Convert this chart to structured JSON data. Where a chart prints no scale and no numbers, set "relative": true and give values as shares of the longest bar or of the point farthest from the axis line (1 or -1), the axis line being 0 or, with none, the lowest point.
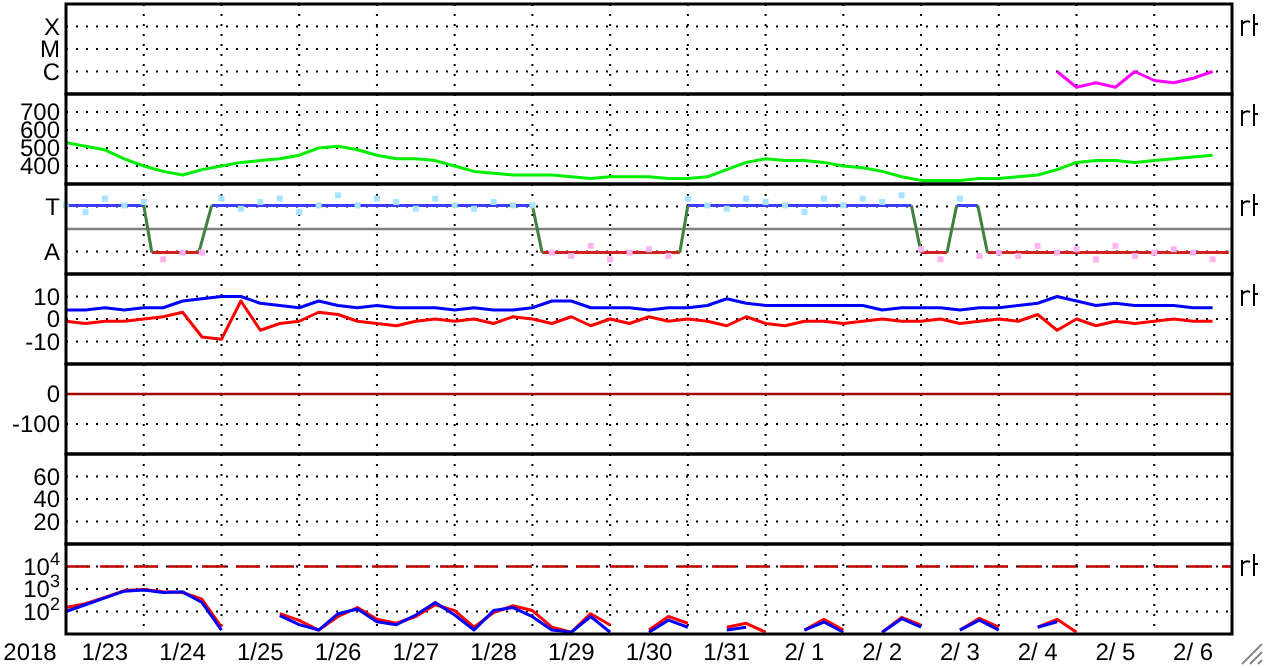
{
  "chart_data": [
    {
      "type": "line",
      "relative": true,
      "grid": true,
      "tick_labels": "y",
      "xlim": [
        "2018-01-23",
        "2018-02-07"
      ],
      "annotations": [
        "X",
        "M",
        "C"
      ],
      "xticks": [
        {
          "value": "2018-01-24",
          "label": null
        },
        {
          "value": "2018-01-25",
          "label": null
        },
        {
          "value": "2018-01-26",
          "label": null
        },
        {
          "value": "2018-01-27",
          "label": null
        },
        {
          "value": "2018-01-28",
          "label": null
        },
        {
          "value": "2018-01-29",
          "label": null
        },
        {
          "value": "2018-01-30",
          "label": null
        },
        {
          "value": "2018-01-31",
          "label": null
        },
        {
          "value": "2018-02-01",
          "label": null
        },
        {
          "value": "2018-02-02",
          "label": null
        },
        {
          "value": "2018-02-03",
          "label": null
        },
        {
          "value": "2018-02-04",
          "label": null
        },
        {
          "value": "2018-02-05",
          "label": null
        },
        {
          "value": "2018-02-06",
          "label": null
        }
      ],
      "x": [
        "2018-02-04T18:00",
        "2018-02-05T00:00",
        "2018-02-05T06:00",
        "2018-02-05T12:00",
        "2018-02-05T18:00",
        "2018-02-06T00:00",
        "2018-02-06T06:00",
        "2018-02-06T12:00",
        "2018-02-06T18:00"
      ],
      "series": [
        {
          "color": "#ff00ff",
          "values": [
            1,
            0.3,
            0.5,
            0.3,
            1,
            0.6,
            0.5,
            0.7,
            1
          ]
        }
      ]
    },
    {
      "type": "line",
      "grid": true,
      "tick_labels": "y",
      "xlim": [
        "2018-01-23",
        "2018-02-07"
      ],
      "ylim": [
        300,
        800
      ],
      "yticks": [
        400,
        500,
        600,
        700
      ],
      "xticks": [
        {
          "value": "2018-01-24",
          "label": null
        },
        {
          "value": "2018-01-25",
          "label": null
        },
        {
          "value": "2018-01-26",
          "label": null
        },
        {
          "value": "2018-01-27",
          "label": null
        },
        {
          "value": "2018-01-28",
          "label": null
        },
        {
          "value": "2018-01-29",
          "label": null
        },
        {
          "value": "2018-01-30",
          "label": null
        },
        {
          "value": "2018-01-31",
          "label": null
        },
        {
          "value": "2018-02-01",
          "label": null
        },
        {
          "value": "2018-02-02",
          "label": null
        },
        {
          "value": "2018-02-03",
          "label": null
        },
        {
          "value": "2018-02-04",
          "label": null
        },
        {
          "value": "2018-02-05",
          "label": null
        },
        {
          "value": "2018-02-06",
          "label": null
        }
      ],
      "x": [
        "2018-01-23T00:00",
        "2018-01-23T06:00",
        "2018-01-23T12:00",
        "2018-01-23T18:00",
        "2018-01-24T00:00",
        "2018-01-24T06:00",
        "2018-01-24T12:00",
        "2018-01-24T18:00",
        "2018-01-25T00:00",
        "2018-01-25T06:00",
        "2018-01-25T12:00",
        "2018-01-25T18:00",
        "2018-01-26T00:00",
        "2018-01-26T06:00",
        "2018-01-26T12:00",
        "2018-01-26T18:00",
        "2018-01-27T00:00",
        "2018-01-27T06:00",
        "2018-01-27T12:00",
        "2018-01-27T18:00",
        "2018-01-28T00:00",
        "2018-01-28T06:00",
        "2018-01-28T12:00",
        "2018-01-28T18:00",
        "2018-01-29T00:00",
        "2018-01-29T06:00",
        "2018-01-29T12:00",
        "2018-01-29T18:00",
        "2018-01-30T00:00",
        "2018-01-30T06:00",
        "2018-01-30T12:00",
        "2018-01-30T18:00",
        "2018-01-31T00:00",
        "2018-01-31T06:00",
        "2018-01-31T12:00",
        "2018-01-31T18:00",
        "2018-02-01T00:00",
        "2018-02-01T06:00",
        "2018-02-01T12:00",
        "2018-02-01T18:00",
        "2018-02-02T00:00",
        "2018-02-02T06:00",
        "2018-02-02T12:00",
        "2018-02-02T18:00",
        "2018-02-03T00:00",
        "2018-02-03T06:00",
        "2018-02-03T12:00",
        "2018-02-03T18:00",
        "2018-02-04T00:00",
        "2018-02-04T06:00",
        "2018-02-04T12:00",
        "2018-02-04T18:00",
        "2018-02-05T00:00",
        "2018-02-05T06:00",
        "2018-02-05T12:00",
        "2018-02-05T18:00",
        "2018-02-06T00:00",
        "2018-02-06T06:00",
        "2018-02-06T12:00",
        "2018-02-06T18:00"
      ],
      "series": [
        {
          "color": "#00ee00",
          "values": [
            530,
            510,
            490,
            440,
            400,
            370,
            350,
            380,
            400,
            420,
            430,
            440,
            460,
            500,
            510,
            490,
            460,
            440,
            440,
            430,
            400,
            370,
            360,
            350,
            350,
            350,
            340,
            330,
            340,
            340,
            340,
            330,
            330,
            340,
            380,
            420,
            440,
            430,
            430,
            420,
            400,
            390,
            370,
            340,
            320,
            320,
            320,
            330,
            330,
            340,
            350,
            380,
            420,
            430,
            430,
            420,
            430,
            440,
            450,
            460
          ]
        }
      ]
    },
    {
      "type": "line",
      "relative": true,
      "grid": true,
      "tick_labels": "y",
      "xlim": [
        "2018-01-23",
        "2018-02-07"
      ],
      "annotations": [
        "T",
        "A"
      ],
      "xticks": [
        {
          "value": "2018-01-24",
          "label": null
        },
        {
          "value": "2018-01-25",
          "label": null
        },
        {
          "value": "2018-01-26",
          "label": null
        },
        {
          "value": "2018-01-27",
          "label": null
        },
        {
          "value": "2018-01-28",
          "label": null
        },
        {
          "value": "2018-01-29",
          "label": null
        },
        {
          "value": "2018-01-30",
          "label": null
        },
        {
          "value": "2018-01-31",
          "label": null
        },
        {
          "value": "2018-02-01",
          "label": null
        },
        {
          "value": "2018-02-02",
          "label": null
        },
        {
          "value": "2018-02-03",
          "label": null
        },
        {
          "value": "2018-02-04",
          "label": null
        },
        {
          "value": "2018-02-05",
          "label": null
        },
        {
          "value": "2018-02-06",
          "label": null
        }
      ],
      "x": [
        "2018-01-23T00:00",
        "2018-01-23T06:00",
        "2018-01-23T12:00",
        "2018-01-23T18:00",
        "2018-01-24T00:00",
        "2018-01-24T06:00",
        "2018-01-24T12:00",
        "2018-01-24T18:00",
        "2018-01-25T00:00",
        "2018-01-25T06:00",
        "2018-01-25T12:00",
        "2018-01-25T18:00",
        "2018-01-26T00:00",
        "2018-01-26T06:00",
        "2018-01-26T12:00",
        "2018-01-26T18:00",
        "2018-01-27T00:00",
        "2018-01-27T06:00",
        "2018-01-27T12:00",
        "2018-01-27T18:00",
        "2018-01-28T00:00",
        "2018-01-28T06:00",
        "2018-01-28T12:00",
        "2018-01-28T18:00",
        "2018-01-29T00:00",
        "2018-01-29T06:00",
        "2018-01-29T12:00",
        "2018-01-29T18:00",
        "2018-01-30T00:00",
        "2018-01-30T06:00",
        "2018-01-30T12:00",
        "2018-01-30T18:00",
        "2018-01-31T00:00",
        "2018-01-31T06:00",
        "2018-01-31T12:00",
        "2018-01-31T18:00",
        "2018-02-01T00:00",
        "2018-02-01T06:00",
        "2018-02-01T12:00",
        "2018-02-01T18:00",
        "2018-02-02T00:00",
        "2018-02-02T06:00",
        "2018-02-02T12:00",
        "2018-02-02T18:00",
        "2018-02-03T00:00",
        "2018-02-03T06:00",
        "2018-02-03T12:00",
        "2018-02-03T18:00",
        "2018-02-04T00:00",
        "2018-02-04T06:00",
        "2018-02-04T12:00",
        "2018-02-04T18:00",
        "2018-02-05T00:00",
        "2018-02-05T06:00",
        "2018-02-05T12:00",
        "2018-02-05T18:00",
        "2018-02-06T00:00",
        "2018-02-06T06:00",
        "2018-02-06T12:00",
        "2018-02-06T18:00"
      ],
      "ref_lines": [
        {
          "axis": "y",
          "value": 0,
          "color": "#808080"
        }
      ],
      "series": [
        {
          "type": "scatter",
          "color": "#a8e4ff",
          "values": [
            0.7,
            0.5,
            0.9,
            0.7,
            0.8,
            null,
            null,
            null,
            0.9,
            0.6,
            0.8,
            0.9,
            0.5,
            0.7,
            1,
            0.7,
            0.9,
            0.8,
            0.6,
            0.9,
            0.7,
            0.6,
            0.8,
            0.7,
            0.7,
            null,
            null,
            null,
            null,
            null,
            null,
            null,
            0.9,
            0.7,
            0.6,
            0.9,
            0.8,
            0.7,
            0.5,
            0.9,
            0.7,
            0.9,
            0.8,
            1,
            null,
            null,
            0.9,
            null,
            null,
            null,
            null,
            null,
            null,
            null,
            null,
            null,
            null,
            null,
            null,
            null
          ]
        },
        {
          "type": "scatter",
          "color": "#ffb4f0",
          "values": [
            null,
            null,
            null,
            null,
            null,
            -0.9,
            -0.7,
            -0.7,
            null,
            null,
            null,
            null,
            null,
            null,
            null,
            null,
            null,
            null,
            null,
            null,
            null,
            null,
            null,
            null,
            null,
            -0.7,
            -0.8,
            -0.5,
            -0.9,
            -0.7,
            -0.6,
            -0.8,
            null,
            null,
            null,
            null,
            null,
            null,
            null,
            null,
            null,
            null,
            null,
            null,
            -0.6,
            -0.9,
            null,
            -0.8,
            -0.7,
            -0.8,
            -0.5,
            -0.7,
            -0.6,
            -0.9,
            -0.5,
            -0.8,
            -0.7,
            -0.6,
            -0.7,
            -0.9
          ]
        },
        {
          "color": "#3c3cff",
          "x": [
            "2018-01-23T00:00",
            "2018-01-24T00:00",
            "2018-01-24T12:00",
            "2018-01-24T21:00",
            "2018-01-29T00:00",
            "2018-01-30T00:00",
            "2018-01-31T00:00",
            "2018-02-02T21:00",
            "2018-02-03T06:00",
            "2018-02-03T11:00",
            "2018-02-03T17:30"
          ],
          "values": [
            0.7,
            0.7,
            null,
            0.7,
            0.7,
            null,
            0.7,
            0.7,
            null,
            0.7,
            0.7
          ]
        },
        {
          "color": "#d02020",
          "x": [
            "2018-01-24T02:30",
            "2018-01-24T17:00",
            "2018-01-26T00:00",
            "2018-01-29T03:00",
            "2018-01-30T21:30",
            "2018-02-02T00:00",
            "2018-02-03T00:00",
            "2018-02-03T08:00",
            "2018-02-03T14:00",
            "2018-02-03T20:30",
            "2018-02-06T23:00"
          ],
          "values": [
            -0.7,
            -0.7,
            null,
            -0.7,
            -0.7,
            null,
            -0.7,
            -0.7,
            null,
            -0.7,
            -0.7
          ]
        },
        {
          "color": "#408040",
          "x": [
            "2018-01-24T00:00",
            "2018-01-24T02:30",
            "2018-01-24T10:00",
            "2018-01-24T17:00",
            "2018-01-24T21:00",
            "2018-01-27T00:00",
            "2018-01-29T00:00",
            "2018-01-29T03:00",
            "2018-01-30T00:00",
            "2018-01-30T21:30",
            "2018-01-31T00:00",
            "2018-02-01T00:00",
            "2018-02-02T21:00",
            "2018-02-03T00:00",
            "2018-02-03T04:00",
            "2018-02-03T08:00",
            "2018-02-03T11:00",
            "2018-02-03T14:00",
            "2018-02-03T17:30",
            "2018-02-03T20:30"
          ],
          "values": [
            0.7,
            -0.7,
            null,
            -0.7,
            0.7,
            null,
            0.7,
            -0.7,
            null,
            -0.7,
            0.7,
            null,
            0.7,
            -0.7,
            null,
            -0.7,
            0.7,
            null,
            0.7,
            -0.7
          ]
        }
      ]
    },
    {
      "type": "line",
      "grid": true,
      "tick_labels": "y",
      "xlim": [
        "2018-01-23",
        "2018-02-07"
      ],
      "ylim": [
        -20,
        20
      ],
      "yticks": [
        -10,
        0,
        10
      ],
      "xticks": [
        {
          "value": "2018-01-24",
          "label": null
        },
        {
          "value": "2018-01-25",
          "label": null
        },
        {
          "value": "2018-01-26",
          "label": null
        },
        {
          "value": "2018-01-27",
          "label": null
        },
        {
          "value": "2018-01-28",
          "label": null
        },
        {
          "value": "2018-01-29",
          "label": null
        },
        {
          "value": "2018-01-30",
          "label": null
        },
        {
          "value": "2018-01-31",
          "label": null
        },
        {
          "value": "2018-02-01",
          "label": null
        },
        {
          "value": "2018-02-02",
          "label": null
        },
        {
          "value": "2018-02-03",
          "label": null
        },
        {
          "value": "2018-02-04",
          "label": null
        },
        {
          "value": "2018-02-05",
          "label": null
        },
        {
          "value": "2018-02-06",
          "label": null
        }
      ],
      "x": [
        "2018-01-23T00:00",
        "2018-01-23T06:00",
        "2018-01-23T12:00",
        "2018-01-23T18:00",
        "2018-01-24T00:00",
        "2018-01-24T06:00",
        "2018-01-24T12:00",
        "2018-01-24T18:00",
        "2018-01-25T00:00",
        "2018-01-25T06:00",
        "2018-01-25T12:00",
        "2018-01-25T18:00",
        "2018-01-26T00:00",
        "2018-01-26T06:00",
        "2018-01-26T12:00",
        "2018-01-26T18:00",
        "2018-01-27T00:00",
        "2018-01-27T06:00",
        "2018-01-27T12:00",
        "2018-01-27T18:00",
        "2018-01-28T00:00",
        "2018-01-28T06:00",
        "2018-01-28T12:00",
        "2018-01-28T18:00",
        "2018-01-29T00:00",
        "2018-01-29T06:00",
        "2018-01-29T12:00",
        "2018-01-29T18:00",
        "2018-01-30T00:00",
        "2018-01-30T06:00",
        "2018-01-30T12:00",
        "2018-01-30T18:00",
        "2018-01-31T00:00",
        "2018-01-31T06:00",
        "2018-01-31T12:00",
        "2018-01-31T18:00",
        "2018-02-01T00:00",
        "2018-02-01T06:00",
        "2018-02-01T12:00",
        "2018-02-01T18:00",
        "2018-02-02T00:00",
        "2018-02-02T06:00",
        "2018-02-02T12:00",
        "2018-02-02T18:00",
        "2018-02-03T00:00",
        "2018-02-03T06:00",
        "2018-02-03T12:00",
        "2018-02-03T18:00",
        "2018-02-04T00:00",
        "2018-02-04T06:00",
        "2018-02-04T12:00",
        "2018-02-04T18:00",
        "2018-02-05T00:00",
        "2018-02-05T06:00",
        "2018-02-05T12:00",
        "2018-02-05T18:00",
        "2018-02-06T00:00",
        "2018-02-06T06:00",
        "2018-02-06T12:00",
        "2018-02-06T18:00"
      ],
      "series": [
        {
          "color": "#0000ff",
          "values": [
            4,
            4,
            5,
            4,
            5,
            5,
            8,
            9,
            10,
            10,
            7,
            6,
            5,
            8,
            6,
            5,
            6,
            5,
            5,
            5,
            4,
            5,
            4,
            4,
            5,
            8,
            8,
            5,
            5,
            5,
            4,
            5,
            5,
            6,
            9,
            7,
            6,
            6,
            6,
            6,
            6,
            6,
            4,
            5,
            5,
            5,
            4,
            5,
            5,
            6,
            7,
            10,
            8,
            6,
            7,
            6,
            6,
            6,
            5,
            5
          ]
        },
        {
          "color": "#ff0000",
          "values": [
            -1,
            -2,
            -1,
            -1,
            0,
            1,
            3,
            -8,
            -9,
            8,
            -5,
            -2,
            -1,
            3,
            2,
            -1,
            -2,
            -3,
            -1,
            0,
            -1,
            0,
            -2,
            1,
            0,
            -2,
            1,
            -3,
            0,
            -2,
            1,
            -1,
            0,
            -1,
            -3,
            1,
            -2,
            -3,
            -1,
            -1,
            -2,
            -1,
            0,
            -1,
            -1,
            0,
            -2,
            -1,
            0,
            -1,
            2,
            -5,
            0,
            -3,
            -1,
            -2,
            -1,
            0,
            -1,
            -1
          ]
        }
      ]
    },
    {
      "type": "line",
      "grid": true,
      "tick_labels": "y",
      "xlim": [
        "2018-01-23",
        "2018-02-07"
      ],
      "ylim": [
        -200,
        100
      ],
      "yticks": [
        -100,
        0
      ],
      "xticks": [
        {
          "value": "2018-01-24",
          "label": null
        },
        {
          "value": "2018-01-25",
          "label": null
        },
        {
          "value": "2018-01-26",
          "label": null
        },
        {
          "value": "2018-01-27",
          "label": null
        },
        {
          "value": "2018-01-28",
          "label": null
        },
        {
          "value": "2018-01-29",
          "label": null
        },
        {
          "value": "2018-01-30",
          "label": null
        },
        {
          "value": "2018-01-31",
          "label": null
        },
        {
          "value": "2018-02-01",
          "label": null
        },
        {
          "value": "2018-02-02",
          "label": null
        },
        {
          "value": "2018-02-03",
          "label": null
        },
        {
          "value": "2018-02-04",
          "label": null
        },
        {
          "value": "2018-02-05",
          "label": null
        },
        {
          "value": "2018-02-06",
          "label": null
        }
      ],
      "ref_lines": [
        {
          "axis": "y",
          "value": 0,
          "color": "#a00000"
        }
      ]
    },
    {
      "type": "line",
      "grid": true,
      "tick_labels": "y",
      "xlim": [
        "2018-01-23",
        "2018-02-07"
      ],
      "ylim": [
        0,
        80
      ],
      "yticks": [
        20,
        40,
        60
      ],
      "xticks": [
        {
          "value": "2018-01-24",
          "label": null
        },
        {
          "value": "2018-01-25",
          "label": null
        },
        {
          "value": "2018-01-26",
          "label": null
        },
        {
          "value": "2018-01-27",
          "label": null
        },
        {
          "value": "2018-01-28",
          "label": null
        },
        {
          "value": "2018-01-29",
          "label": null
        },
        {
          "value": "2018-01-30",
          "label": null
        },
        {
          "value": "2018-01-31",
          "label": null
        },
        {
          "value": "2018-02-01",
          "label": null
        },
        {
          "value": "2018-02-02",
          "label": null
        },
        {
          "value": "2018-02-03",
          "label": null
        },
        {
          "value": "2018-02-04",
          "label": null
        },
        {
          "value": "2018-02-05",
          "label": null
        },
        {
          "value": "2018-02-06",
          "label": null
        }
      ]
    },
    {
      "type": "line",
      "log": "y",
      "grid": true,
      "xlabel": "2018",
      "xlim": [
        "2018-01-23",
        "2018-02-07"
      ],
      "ylim": [
        10,
        100000
      ],
      "yticks": [
        {
          "value": 100,
          "label": "10$^{2}$"
        },
        {
          "value": 1000,
          "label": "10$^{3}$"
        },
        {
          "value": 10000,
          "label": "10$^{4}$"
        }
      ],
      "xticks": [
        {
          "value": "2018-01-24",
          "label": null
        },
        {
          "value": "2018-01-25",
          "label": null
        },
        {
          "value": "2018-01-26",
          "label": null
        },
        {
          "value": "2018-01-27",
          "label": null
        },
        {
          "value": "2018-01-28",
          "label": null
        },
        {
          "value": "2018-01-29",
          "label": null
        },
        {
          "value": "2018-01-30",
          "label": null
        },
        {
          "value": "2018-01-31",
          "label": null
        },
        {
          "value": "2018-02-01",
          "label": null
        },
        {
          "value": "2018-02-02",
          "label": null
        },
        {
          "value": "2018-02-03",
          "label": null
        },
        {
          "value": "2018-02-04",
          "label": null
        },
        {
          "value": "2018-02-05",
          "label": null
        },
        {
          "value": "2018-02-06",
          "label": null
        },
        {
          "value": "2018-01-23T12:00",
          "label": "1/23"
        },
        {
          "value": "2018-01-24T12:00",
          "label": "1/24"
        },
        {
          "value": "2018-01-25T12:00",
          "label": "1/25"
        },
        {
          "value": "2018-01-26T12:00",
          "label": "1/26"
        },
        {
          "value": "2018-01-27T12:00",
          "label": "1/27"
        },
        {
          "value": "2018-01-28T12:00",
          "label": "1/28"
        },
        {
          "value": "2018-01-29T12:00",
          "label": "1/29"
        },
        {
          "value": "2018-01-30T12:00",
          "label": "1/30"
        },
        {
          "value": "2018-01-31T12:00",
          "label": "1/31"
        },
        {
          "value": "2018-02-01T12:00",
          "label": "2/ 1"
        },
        {
          "value": "2018-02-02T12:00",
          "label": "2/ 2"
        },
        {
          "value": "2018-02-03T12:00",
          "label": "2/ 3"
        },
        {
          "value": "2018-02-04T12:00",
          "label": "2/ 4"
        },
        {
          "value": "2018-02-05T12:00",
          "label": "2/ 5"
        },
        {
          "value": "2018-02-06T12:00",
          "label": "2/ 6"
        }
      ],
      "x": [
        "2018-01-23T00:00",
        "2018-01-23T06:00",
        "2018-01-23T12:00",
        "2018-01-23T18:00",
        "2018-01-24T00:00",
        "2018-01-24T06:00",
        "2018-01-24T12:00",
        "2018-01-24T18:00",
        "2018-01-25T00:00",
        "2018-01-25T06:00",
        "2018-01-25T12:00",
        "2018-01-25T18:00",
        "2018-01-26T00:00",
        "2018-01-26T06:00",
        "2018-01-26T12:00",
        "2018-01-26T18:00",
        "2018-01-27T00:00",
        "2018-01-27T06:00",
        "2018-01-27T12:00",
        "2018-01-27T18:00",
        "2018-01-28T00:00",
        "2018-01-28T06:00",
        "2018-01-28T12:00",
        "2018-01-28T18:00",
        "2018-01-29T00:00",
        "2018-01-29T06:00",
        "2018-01-29T12:00",
        "2018-01-29T18:00",
        "2018-01-30T00:00",
        "2018-01-30T06:00",
        "2018-01-30T12:00",
        "2018-01-30T18:00",
        "2018-01-31T00:00",
        "2018-01-31T06:00",
        "2018-01-31T12:00",
        "2018-01-31T18:00",
        "2018-02-01T00:00",
        "2018-02-01T06:00",
        "2018-02-01T12:00",
        "2018-02-01T18:00",
        "2018-02-02T00:00",
        "2018-02-02T06:00",
        "2018-02-02T12:00",
        "2018-02-02T18:00",
        "2018-02-03T00:00",
        "2018-02-03T06:00",
        "2018-02-03T12:00",
        "2018-02-03T18:00",
        "2018-02-04T00:00",
        "2018-02-04T06:00",
        "2018-02-04T12:00",
        "2018-02-04T18:00",
        "2018-02-05T00:00"
      ],
      "ref_lines": [
        {
          "axis": "y",
          "value": 10000,
          "color": "#c00000",
          "line_style": "dashed"
        }
      ],
      "series": [
        {
          "color": "#ff0000",
          "values": [
            150,
            220,
            420,
            850,
            950,
            750,
            700,
            350,
            20,
            null,
            null,
            80,
            40,
            15,
            60,
            150,
            45,
            30,
            60,
            200,
            110,
            20,
            90,
            180,
            110,
            20,
            12,
            80,
            25,
            null,
            15,
            60,
            30,
            null,
            20,
            30,
            12,
            null,
            15,
            45,
            15,
            null,
            12,
            55,
            25,
            null,
            15,
            50,
            20,
            null,
            20,
            45,
            12
          ]
        },
        {
          "color": "#0000ff",
          "values": [
            100,
            200,
            400,
            800,
            900,
            700,
            750,
            250,
            15,
            null,
            null,
            66,
            26,
            15,
            80,
            130,
            35,
            26,
            70,
            250,
            70,
            15,
            110,
            150,
            59,
            15,
            12,
            60,
            12,
            null,
            12,
            41,
            20,
            null,
            15,
            20,
            null,
            null,
            15,
            34,
            12,
            null,
            12,
            48,
            20,
            null,
            15,
            41,
            15,
            null,
            20,
            35,
            null
          ]
        }
      ]
    }
  ]
}
